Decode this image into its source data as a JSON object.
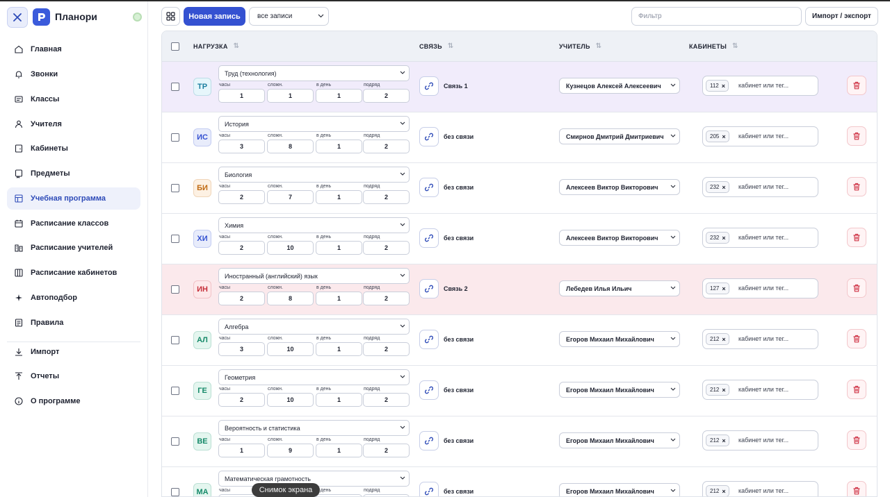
{
  "app": {
    "title": "Планори"
  },
  "sidebar": {
    "items": [
      {
        "label": "Главная",
        "icon": "home-icon"
      },
      {
        "label": "Звонки",
        "icon": "bell-icon"
      },
      {
        "label": "Классы",
        "icon": "classes-icon"
      },
      {
        "label": "Учителя",
        "icon": "user-icon"
      },
      {
        "label": "Кабинеты",
        "icon": "room-icon"
      },
      {
        "label": "Предметы",
        "icon": "subjects-icon"
      },
      {
        "label": "Учебная программа",
        "icon": "curriculum-icon",
        "active": true
      },
      {
        "label": "Расписание классов",
        "icon": "calendar-icon"
      },
      {
        "label": "Расписание учителей",
        "icon": "teacher-schedule-icon"
      },
      {
        "label": "Расписание кабинетов",
        "icon": "room-schedule-icon"
      },
      {
        "label": "Автоподбор",
        "icon": "sparkle-icon"
      },
      {
        "label": "Правила",
        "icon": "rules-icon"
      },
      {
        "label": "Импорт",
        "icon": "import-icon"
      },
      {
        "label": "Отчеты",
        "icon": "export-icon"
      },
      {
        "label": "О программе",
        "icon": "info-icon"
      }
    ]
  },
  "toolbar": {
    "new_label": "Новая запись",
    "filter_select": "все записи",
    "filter_placeholder": "Фильтр",
    "import_label": "Импорт / экспорт"
  },
  "table": {
    "headers": {
      "load": "НАГРУЗКА",
      "link": "СВЯЗЬ",
      "teacher": "УЧИТЕЛЬ",
      "rooms": "КАБИНЕТЫ"
    },
    "num_labels": {
      "hours": "часы",
      "complexity": "сложн.",
      "per_day": "в день",
      "in_row": "подряд"
    },
    "rooms_placeholder": "кабинет или тег...",
    "rows": [
      {
        "abbr": "ТР",
        "abbr_color": "#1c7fa0",
        "abbr_bg": "#e6f6fb",
        "subject": "Труд (технология)",
        "hours": "1",
        "complexity": "1",
        "per_day": "1",
        "in_row": "2",
        "link": "Связь 1",
        "teacher": "Кузнецов Алексей Алексеевич",
        "room": "112",
        "bg": "purple"
      },
      {
        "abbr": "ИС",
        "abbr_color": "#3451d1",
        "abbr_bg": "#e8ecfb",
        "subject": "История",
        "hours": "3",
        "complexity": "8",
        "per_day": "1",
        "in_row": "2",
        "link": "без связи",
        "teacher": "Смирнов Дмитрий Дмитриевич",
        "room": "205",
        "bg": "white"
      },
      {
        "abbr": "БИ",
        "abbr_color": "#c06a12",
        "abbr_bg": "#fdf1e3",
        "subject": "Биология",
        "hours": "2",
        "complexity": "7",
        "per_day": "1",
        "in_row": "2",
        "link": "без связи",
        "teacher": "Алексеев Виктор Викторович",
        "room": "232",
        "bg": "white"
      },
      {
        "abbr": "ХИ",
        "abbr_color": "#3451d1",
        "abbr_bg": "#e8ecfb",
        "subject": "Химия",
        "hours": "2",
        "complexity": "10",
        "per_day": "1",
        "in_row": "2",
        "link": "без связи",
        "teacher": "Алексеев Виктор Викторович",
        "room": "232",
        "bg": "white"
      },
      {
        "abbr": "ИН",
        "abbr_color": "#c62f3a",
        "abbr_bg": "#fde8ea",
        "subject": "Иностранный (английский) язык",
        "hours": "2",
        "complexity": "8",
        "per_day": "1",
        "in_row": "2",
        "link": "Связь 2",
        "teacher": "Лебедев Илья Ильич",
        "room": "127",
        "bg": "pink"
      },
      {
        "abbr": "АЛ",
        "abbr_color": "#178a6a",
        "abbr_bg": "#e4f6ef",
        "subject": "Алгебра",
        "hours": "3",
        "complexity": "10",
        "per_day": "1",
        "in_row": "2",
        "link": "без связи",
        "teacher": "Егоров Михаил Михайлович",
        "room": "212",
        "bg": "white"
      },
      {
        "abbr": "ГЕ",
        "abbr_color": "#178a6a",
        "abbr_bg": "#e4f6ef",
        "subject": "Геометрия",
        "hours": "2",
        "complexity": "10",
        "per_day": "1",
        "in_row": "2",
        "link": "без связи",
        "teacher": "Егоров Михаил Михайлович",
        "room": "212",
        "bg": "white"
      },
      {
        "abbr": "ВЕ",
        "abbr_color": "#178a6a",
        "abbr_bg": "#e4f6ef",
        "subject": "Вероятность и статистика",
        "hours": "1",
        "complexity": "9",
        "per_day": "1",
        "in_row": "2",
        "link": "без связи",
        "teacher": "Егоров Михаил Михайлович",
        "room": "212",
        "bg": "white"
      },
      {
        "abbr": "МА",
        "abbr_color": "#178a6a",
        "abbr_bg": "#e4f6ef",
        "subject": "Математическая грамотность",
        "hours": "",
        "complexity": "",
        "per_day": "",
        "in_row": "",
        "link": "без связи",
        "teacher": "Егоров Михаил Михайлович",
        "room": "212",
        "bg": "white"
      }
    ]
  },
  "tooltip": "Снимок экрана"
}
